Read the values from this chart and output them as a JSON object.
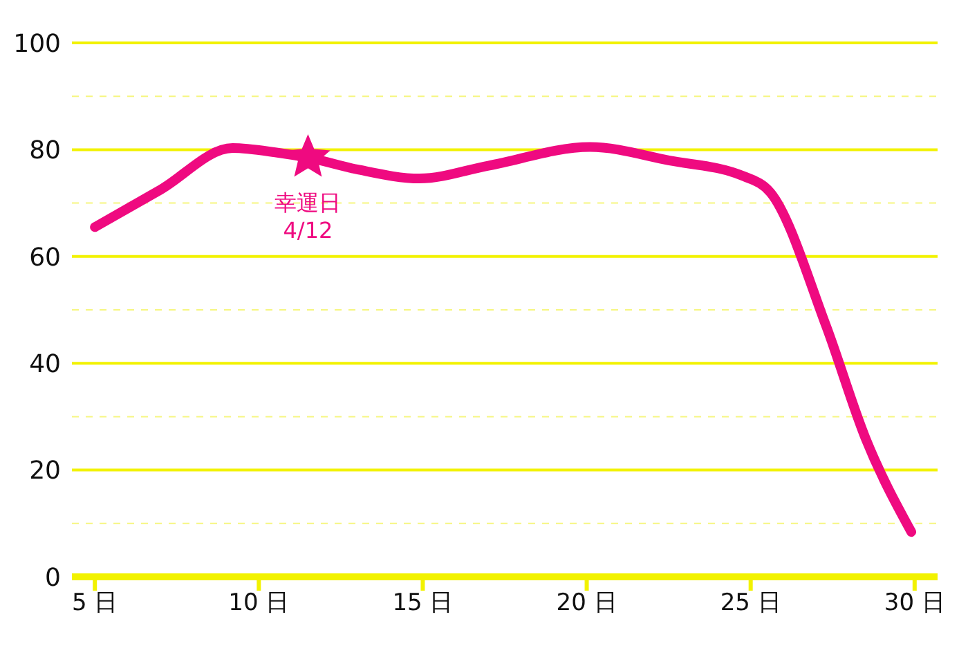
{
  "chart_data": {
    "type": "line",
    "x": [
      5,
      7,
      9.2,
      10.5,
      11.5,
      13,
      14.9,
      17,
      20.1,
      22.5,
      24.8,
      25.6,
      27.3,
      28.5,
      29.9
    ],
    "series": [
      {
        "color": "#ef0a80",
        "values": [
          65.5,
          72.5,
          80.3,
          79.5,
          78.5,
          76.3,
          74.6,
          77,
          80.5,
          78,
          75,
          72,
          47,
          26,
          8.4
        ]
      }
    ],
    "xlim": [
      4.3,
      30.7
    ],
    "xticks": [
      {
        "value": 5,
        "label": "5 日"
      },
      {
        "value": 10,
        "label": "10 日"
      },
      {
        "value": 15,
        "label": "15 日"
      },
      {
        "value": 20,
        "label": "20 日"
      },
      {
        "value": 25,
        "label": "25 日"
      },
      {
        "value": 30,
        "label": "30 日"
      }
    ],
    "ylim": [
      0,
      100
    ],
    "yticks": [
      0,
      {
        "value": 10,
        "label": null
      },
      20,
      {
        "value": 30,
        "label": null
      },
      40,
      {
        "value": 50,
        "label": null
      },
      60,
      {
        "value": 70,
        "label": null
      },
      80,
      {
        "value": 90,
        "label": null
      },
      100
    ],
    "grid": "y",
    "marker": "none",
    "line_style": "solid",
    "annotations": [
      {
        "text": "幸運日\n4/12",
        "x": 11.5,
        "y": 78.5
      }
    ]
  }
}
